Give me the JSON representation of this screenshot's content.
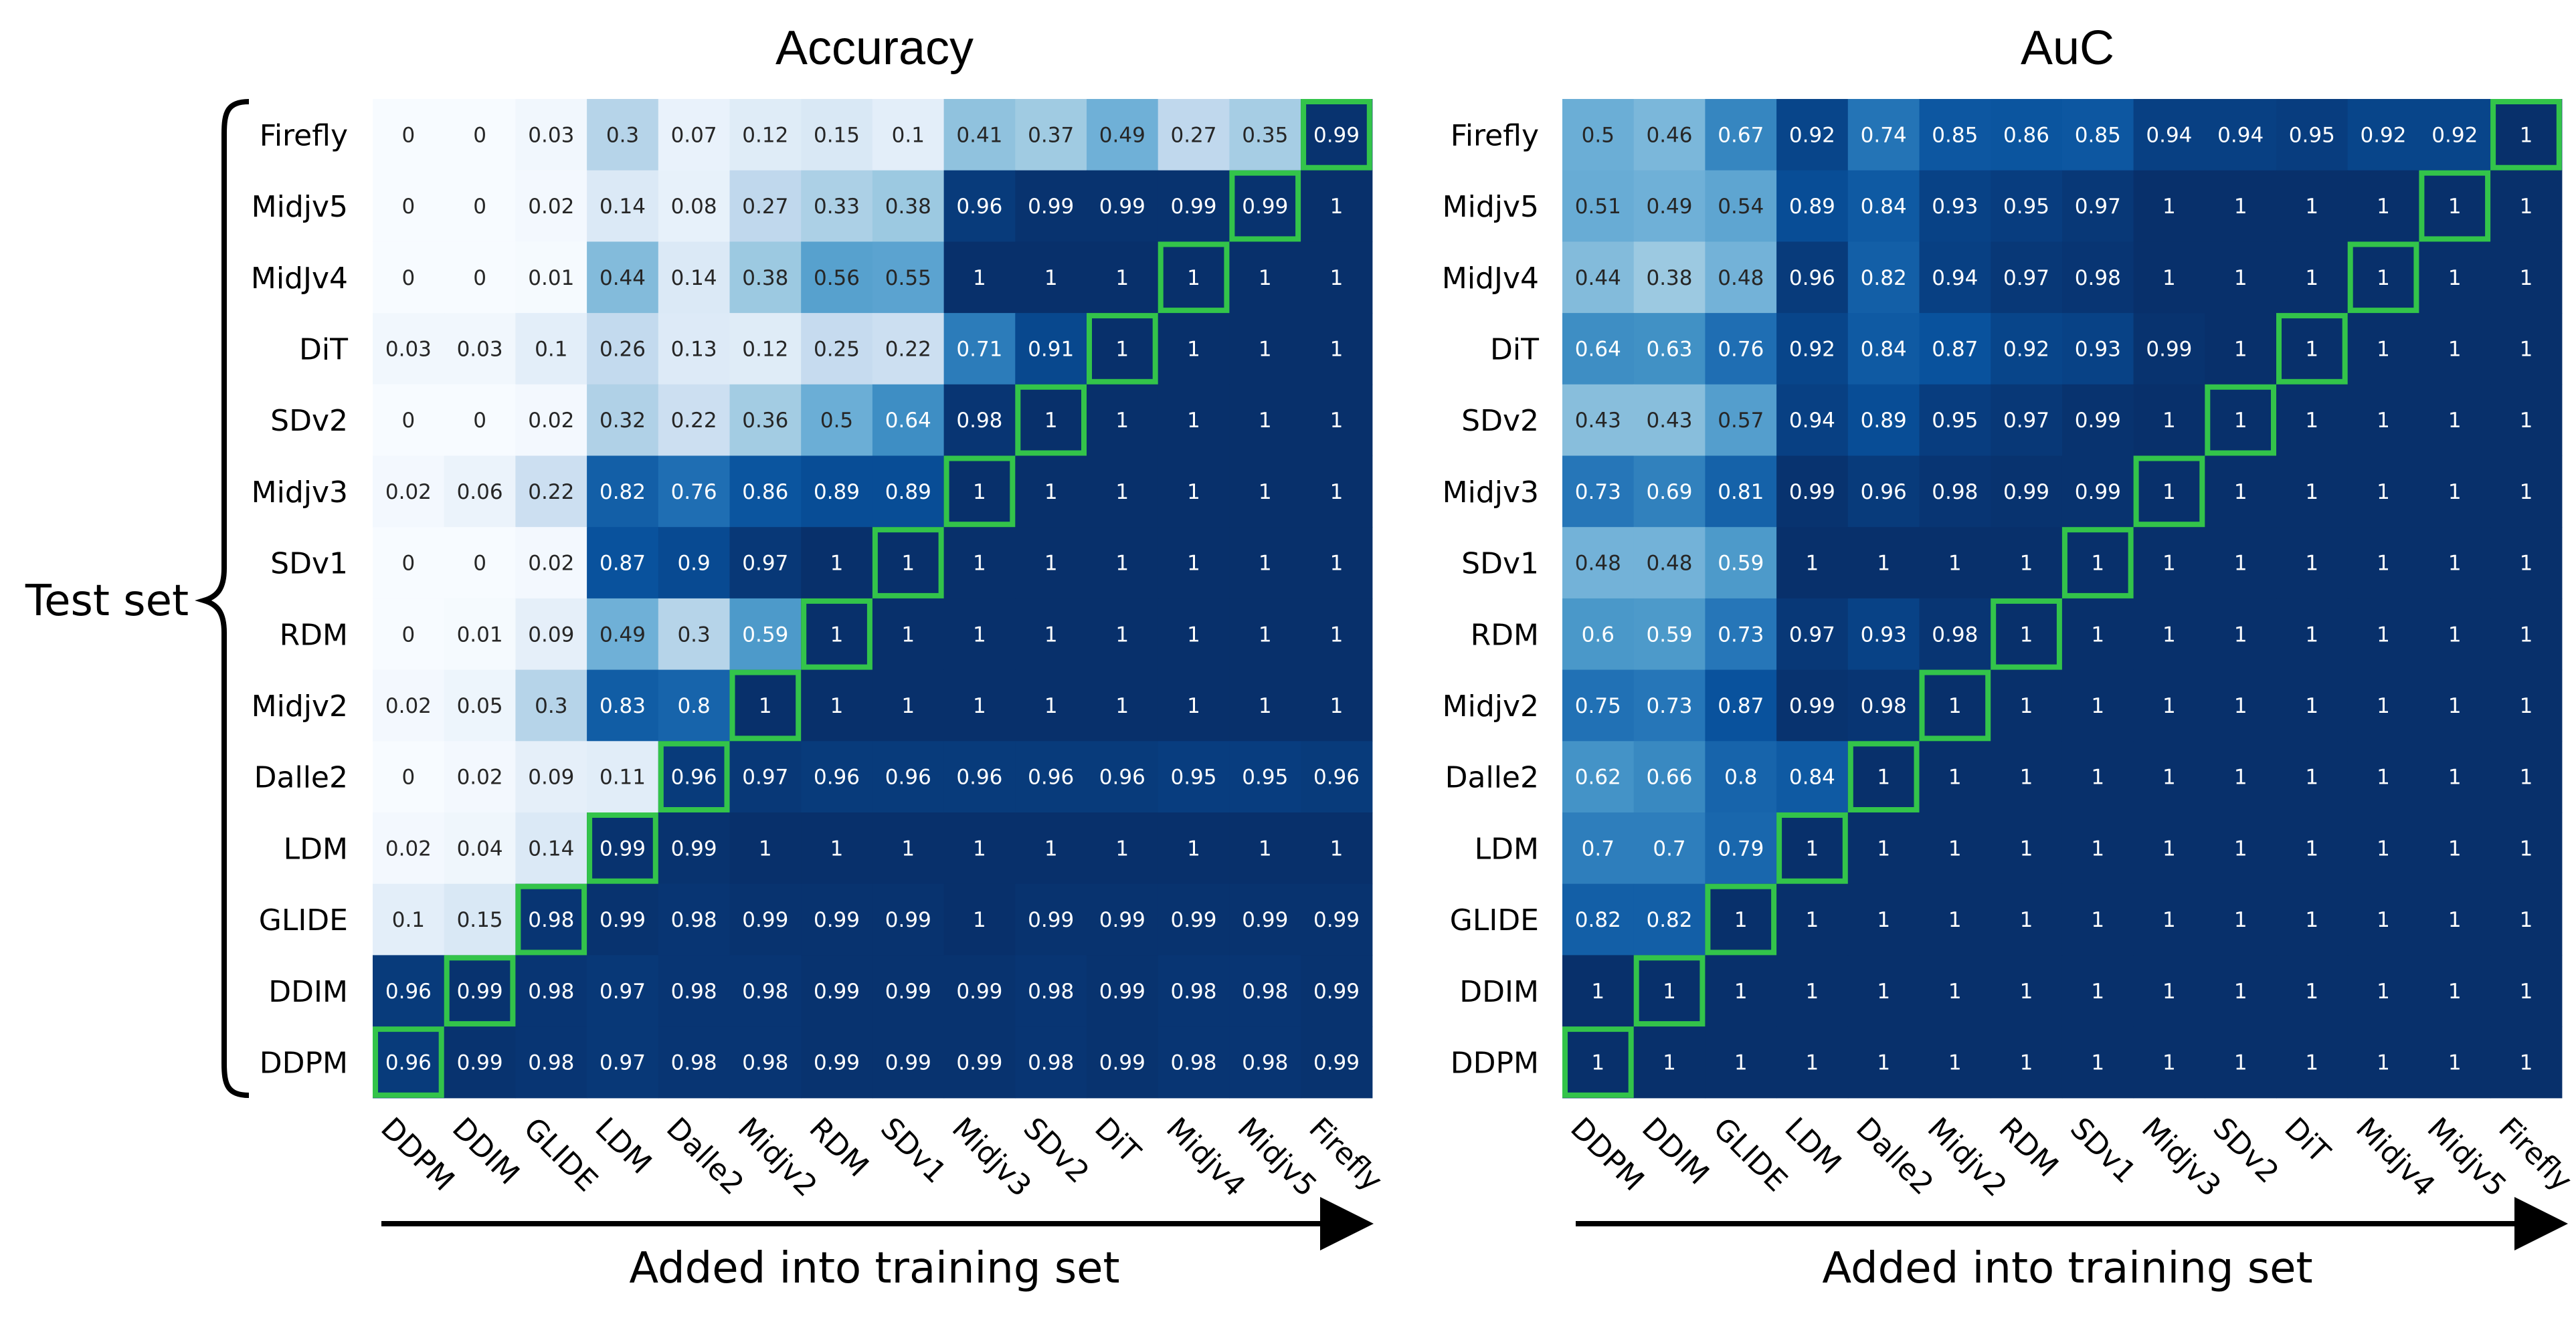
{
  "chart_data": [
    {
      "type": "heatmap",
      "title": "Accuracy",
      "xlabel": "Added into training set",
      "ylabel": "Test set",
      "x_categories": [
        "DDPM",
        "DDIM",
        "GLIDE",
        "LDM",
        "Dalle2",
        "Midjv2",
        "RDM",
        "SDv1",
        "Midjv3",
        "SDv2",
        "DiT",
        "Midjv4",
        "Midjv5",
        "Firefly"
      ],
      "y_categories": [
        "Firefly",
        "Midjv5",
        "MidJv4",
        "DiT",
        "SDv2",
        "Midjv3",
        "SDv1",
        "RDM",
        "Midjv2",
        "Dalle2",
        "LDM",
        "GLIDE",
        "DDIM",
        "DDPM"
      ],
      "colormap": "Blues",
      "value_range": [
        0,
        1
      ],
      "highlight_color": "#33c44a",
      "values": [
        [
          "0",
          "0",
          "0.03",
          "0.3",
          "0.07",
          "0.12",
          "0.15",
          "0.1",
          "0.41",
          "0.37",
          "0.49",
          "0.27",
          "0.35",
          "0.99"
        ],
        [
          "0",
          "0",
          "0.02",
          "0.14",
          "0.08",
          "0.27",
          "0.33",
          "0.38",
          "0.96",
          "0.99",
          "0.99",
          "0.99",
          "0.99",
          "1"
        ],
        [
          "0",
          "0",
          "0.01",
          "0.44",
          "0.14",
          "0.38",
          "0.56",
          "0.55",
          "1",
          "1",
          "1",
          "1",
          "1",
          "1"
        ],
        [
          "0.03",
          "0.03",
          "0.1",
          "0.26",
          "0.13",
          "0.12",
          "0.25",
          "0.22",
          "0.71",
          "0.91",
          "1",
          "1",
          "1",
          "1"
        ],
        [
          "0",
          "0",
          "0.02",
          "0.32",
          "0.22",
          "0.36",
          "0.5",
          "0.64",
          "0.98",
          "1",
          "1",
          "1",
          "1",
          "1"
        ],
        [
          "0.02",
          "0.06",
          "0.22",
          "0.82",
          "0.76",
          "0.86",
          "0.89",
          "0.89",
          "1",
          "1",
          "1",
          "1",
          "1",
          "1"
        ],
        [
          "0",
          "0",
          "0.02",
          "0.87",
          "0.9",
          "0.97",
          "1",
          "1",
          "1",
          "1",
          "1",
          "1",
          "1",
          "1"
        ],
        [
          "0",
          "0.01",
          "0.09",
          "0.49",
          "0.3",
          "0.59",
          "1",
          "1",
          "1",
          "1",
          "1",
          "1",
          "1",
          "1"
        ],
        [
          "0.02",
          "0.05",
          "0.3",
          "0.83",
          "0.8",
          "1",
          "1",
          "1",
          "1",
          "1",
          "1",
          "1",
          "1",
          "1"
        ],
        [
          "0",
          "0.02",
          "0.09",
          "0.11",
          "0.96",
          "0.97",
          "0.96",
          "0.96",
          "0.96",
          "0.96",
          "0.96",
          "0.95",
          "0.95",
          "0.96"
        ],
        [
          "0.02",
          "0.04",
          "0.14",
          "0.99",
          "0.99",
          "1",
          "1",
          "1",
          "1",
          "1",
          "1",
          "1",
          "1",
          "1"
        ],
        [
          "0.1",
          "0.15",
          "0.98",
          "0.99",
          "0.98",
          "0.99",
          "0.99",
          "0.99",
          "1",
          "0.99",
          "0.99",
          "0.99",
          "0.99",
          "0.99"
        ],
        [
          "0.96",
          "0.99",
          "0.98",
          "0.97",
          "0.98",
          "0.98",
          "0.99",
          "0.99",
          "0.99",
          "0.98",
          "0.99",
          "0.98",
          "0.98",
          "0.99"
        ],
        [
          "0.96",
          "0.99",
          "0.98",
          "0.97",
          "0.98",
          "0.98",
          "0.99",
          "0.99",
          "0.99",
          "0.98",
          "0.99",
          "0.98",
          "0.98",
          "0.99"
        ]
      ]
    },
    {
      "type": "heatmap",
      "title": "AuC",
      "xlabel": "Added into training set",
      "ylabel": "",
      "x_categories": [
        "DDPM",
        "DDIM",
        "GLIDE",
        "LDM",
        "Dalle2",
        "Midjv2",
        "RDM",
        "SDv1",
        "Midjv3",
        "SDv2",
        "DiT",
        "Midjv4",
        "Midjv5",
        "Firefly"
      ],
      "y_categories": [
        "Firefly",
        "Midjv5",
        "MidJv4",
        "DiT",
        "SDv2",
        "Midjv3",
        "SDv1",
        "RDM",
        "Midjv2",
        "Dalle2",
        "LDM",
        "GLIDE",
        "DDIM",
        "DDPM"
      ],
      "colormap": "Blues",
      "value_range": [
        0,
        1
      ],
      "highlight_color": "#33c44a",
      "values": [
        [
          "0.5",
          "0.46",
          "0.67",
          "0.92",
          "0.74",
          "0.85",
          "0.86",
          "0.85",
          "0.94",
          "0.94",
          "0.95",
          "0.92",
          "0.92",
          "1"
        ],
        [
          "0.51",
          "0.49",
          "0.54",
          "0.89",
          "0.84",
          "0.93",
          "0.95",
          "0.97",
          "1",
          "1",
          "1",
          "1",
          "1",
          "1"
        ],
        [
          "0.44",
          "0.38",
          "0.48",
          "0.96",
          "0.82",
          "0.94",
          "0.97",
          "0.98",
          "1",
          "1",
          "1",
          "1",
          "1",
          "1"
        ],
        [
          "0.64",
          "0.63",
          "0.76",
          "0.92",
          "0.84",
          "0.87",
          "0.92",
          "0.93",
          "0.99",
          "1",
          "1",
          "1",
          "1",
          "1"
        ],
        [
          "0.43",
          "0.43",
          "0.57",
          "0.94",
          "0.89",
          "0.95",
          "0.97",
          "0.99",
          "1",
          "1",
          "1",
          "1",
          "1",
          "1"
        ],
        [
          "0.73",
          "0.69",
          "0.81",
          "0.99",
          "0.96",
          "0.98",
          "0.99",
          "0.99",
          "1",
          "1",
          "1",
          "1",
          "1",
          "1"
        ],
        [
          "0.48",
          "0.48",
          "0.59",
          "1",
          "1",
          "1",
          "1",
          "1",
          "1",
          "1",
          "1",
          "1",
          "1",
          "1"
        ],
        [
          "0.6",
          "0.59",
          "0.73",
          "0.97",
          "0.93",
          "0.98",
          "1",
          "1",
          "1",
          "1",
          "1",
          "1",
          "1",
          "1"
        ],
        [
          "0.75",
          "0.73",
          "0.87",
          "0.99",
          "0.98",
          "1",
          "1",
          "1",
          "1",
          "1",
          "1",
          "1",
          "1",
          "1"
        ],
        [
          "0.62",
          "0.66",
          "0.8",
          "0.84",
          "1",
          "1",
          "1",
          "1",
          "1",
          "1",
          "1",
          "1",
          "1",
          "1"
        ],
        [
          "0.7",
          "0.7",
          "0.79",
          "1",
          "1",
          "1",
          "1",
          "1",
          "1",
          "1",
          "1",
          "1",
          "1",
          "1"
        ],
        [
          "0.82",
          "0.82",
          "1",
          "1",
          "1",
          "1",
          "1",
          "1",
          "1",
          "1",
          "1",
          "1",
          "1",
          "1"
        ],
        [
          "1",
          "1",
          "1",
          "1",
          "1",
          "1",
          "1",
          "1",
          "1",
          "1",
          "1",
          "1",
          "1",
          "1"
        ],
        [
          "1",
          "1",
          "1",
          "1",
          "1",
          "1",
          "1",
          "1",
          "1",
          "1",
          "1",
          "1",
          "1",
          "1"
        ]
      ]
    }
  ]
}
